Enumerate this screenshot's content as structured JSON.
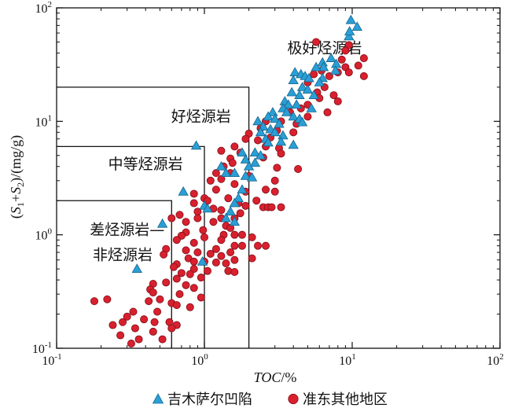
{
  "chart_data": {
    "type": "scatter",
    "x_scale": "log",
    "y_scale": "log",
    "xlim": [
      0.1,
      100
    ],
    "ylim": [
      0.1,
      100
    ],
    "x_ticks": [
      {
        "base": "10",
        "exp": "-1"
      },
      {
        "base": "10",
        "exp": "0"
      },
      {
        "base": "10",
        "exp": "1"
      },
      {
        "base": "10",
        "exp": "2"
      }
    ],
    "y_ticks": [
      {
        "base": "10",
        "exp": "-1"
      },
      {
        "base": "10",
        "exp": "0"
      },
      {
        "base": "10",
        "exp": "1"
      },
      {
        "base": "10",
        "exp": "2"
      }
    ],
    "xlabel": {
      "italic": "TOC",
      "rest": "/%"
    },
    "ylabel": {
      "open": "(",
      "s1": "S",
      "sub1": "1",
      "plus": "+",
      "s2": "S",
      "sub2": "2",
      "close": ")/(mg/g)"
    },
    "regions": [
      {
        "label": "极好烃源岩",
        "at": [
          6.5,
          40
        ]
      },
      {
        "label": "好烃源岩",
        "at": [
          0.95,
          10
        ]
      },
      {
        "label": "中等烃源岩",
        "at": [
          0.4,
          3.8
        ]
      },
      {
        "label": "差烃源岩—",
        "at": [
          0.3,
          1.0
        ]
      },
      {
        "label": "非烃源岩",
        "at": [
          0.28,
          0.6
        ]
      }
    ],
    "boundaries": [
      {
        "toc": 2,
        "s1s2": 20
      },
      {
        "toc": 1,
        "s1s2": 6
      },
      {
        "toc": 0.6,
        "s1s2": 2
      }
    ],
    "legend_position": "bottom",
    "series": [
      {
        "name": "吉木萨尔凹陷",
        "marker": "triangle",
        "color": "#2a9fd6",
        "points": [
          [
            9.8,
            78
          ],
          [
            10.8,
            68
          ],
          [
            9.5,
            56
          ],
          [
            9.6,
            62
          ],
          [
            7.2,
            36
          ],
          [
            6.3,
            33
          ],
          [
            7.8,
            32
          ],
          [
            6.4,
            30
          ],
          [
            5.7,
            30
          ],
          [
            4.1,
            27
          ],
          [
            4.5,
            26
          ],
          [
            4.8,
            25
          ],
          [
            5.1,
            24
          ],
          [
            6.3,
            24
          ],
          [
            7.7,
            28
          ],
          [
            4.0,
            23
          ],
          [
            4.6,
            20
          ],
          [
            5.0,
            19
          ],
          [
            3.9,
            18
          ],
          [
            4.4,
            17
          ],
          [
            5.5,
            17
          ],
          [
            6.0,
            22
          ],
          [
            3.5,
            15
          ],
          [
            3.7,
            14
          ],
          [
            4.2,
            14
          ],
          [
            5.3,
            13
          ],
          [
            3.4,
            13
          ],
          [
            2.9,
            12
          ],
          [
            3.6,
            12
          ],
          [
            4.0,
            11
          ],
          [
            2.7,
            11
          ],
          [
            3.0,
            10.5
          ],
          [
            4.4,
            10.5
          ],
          [
            2.3,
            10
          ],
          [
            3.2,
            9.5
          ],
          [
            4.6,
            9.8
          ],
          [
            2.5,
            9.0
          ],
          [
            2.8,
            8.5
          ],
          [
            3.0,
            8.0
          ],
          [
            3.4,
            7.5
          ],
          [
            2.4,
            8.0
          ],
          [
            2.6,
            7.0
          ],
          [
            3.3,
            6.6
          ],
          [
            2.7,
            6.5
          ],
          [
            4.0,
            6.2
          ],
          [
            0.88,
            6.1
          ],
          [
            2.2,
            5.3
          ],
          [
            1.8,
            5.3
          ],
          [
            2.4,
            5.0
          ],
          [
            1.9,
            4.6
          ],
          [
            2.2,
            4.3
          ],
          [
            2.0,
            4.0
          ],
          [
            1.3,
            4.0
          ],
          [
            1.4,
            3.5
          ],
          [
            1.6,
            3.5
          ],
          [
            1.9,
            3.3
          ],
          [
            2.1,
            3.2
          ],
          [
            1.8,
            2.5
          ],
          [
            0.72,
            2.4
          ],
          [
            1.7,
            2.1
          ],
          [
            1.6,
            1.9
          ],
          [
            1.0,
            1.8
          ],
          [
            1.05,
            1.7
          ],
          [
            1.5,
            1.6
          ],
          [
            1.4,
            1.4
          ],
          [
            1.6,
            1.3
          ],
          [
            0.52,
            1.25
          ],
          [
            0.97,
            0.58
          ],
          [
            0.35,
            0.5
          ]
        ]
      },
      {
        "name": "准东其他地区",
        "marker": "circle",
        "color": "#d9202e",
        "points": [
          [
            5.7,
            50
          ],
          [
            9.5,
            47
          ],
          [
            9.0,
            42
          ],
          [
            12.0,
            36
          ],
          [
            8.5,
            35
          ],
          [
            11.0,
            31
          ],
          [
            9.0,
            30
          ],
          [
            9.5,
            27
          ],
          [
            8.0,
            27
          ],
          [
            12.0,
            25
          ],
          [
            7.0,
            25
          ],
          [
            6.2,
            28
          ],
          [
            5.5,
            26
          ],
          [
            5.0,
            22
          ],
          [
            6.5,
            20
          ],
          [
            5.8,
            18
          ],
          [
            7.5,
            17
          ],
          [
            6.0,
            16
          ],
          [
            8.0,
            15
          ],
          [
            5.0,
            14
          ],
          [
            4.5,
            13
          ],
          [
            6.8,
            12
          ],
          [
            3.8,
            12
          ],
          [
            5.0,
            11
          ],
          [
            3.3,
            10
          ],
          [
            2.6,
            10
          ],
          [
            4.2,
            9.5
          ],
          [
            2.4,
            8.7
          ],
          [
            3.1,
            8.3
          ],
          [
            4.0,
            8.0
          ],
          [
            2.0,
            7.8
          ],
          [
            2.8,
            7.2
          ],
          [
            1.9,
            7.0
          ],
          [
            2.3,
            6.8
          ],
          [
            2.6,
            6.0
          ],
          [
            3.2,
            5.8
          ],
          [
            1.6,
            6.0
          ],
          [
            1.3,
            5.5
          ],
          [
            1.75,
            5.3
          ],
          [
            3.3,
            5.2
          ],
          [
            2.5,
            4.8
          ],
          [
            1.5,
            4.7
          ],
          [
            1.55,
            4.3
          ],
          [
            1.35,
            4.0
          ],
          [
            4.3,
            3.8
          ],
          [
            3.1,
            3.9
          ],
          [
            1.2,
            3.5
          ],
          [
            1.5,
            3.5
          ],
          [
            1.1,
            3.0
          ],
          [
            3.0,
            3.0
          ],
          [
            2.0,
            3.3
          ],
          [
            1.3,
            3.1
          ],
          [
            1.6,
            2.8
          ],
          [
            2.6,
            2.5
          ],
          [
            1.2,
            2.5
          ],
          [
            1.9,
            2.4
          ],
          [
            3.0,
            2.4
          ],
          [
            0.85,
            2.3
          ],
          [
            1.0,
            2.1
          ],
          [
            1.45,
            2.1
          ],
          [
            1.05,
            2.0
          ],
          [
            2.25,
            2.0
          ],
          [
            1.7,
            1.9
          ],
          [
            1.9,
            1.8
          ],
          [
            0.85,
            1.9
          ],
          [
            2.5,
            1.75
          ],
          [
            2.7,
            1.75
          ],
          [
            2.85,
            1.75
          ],
          [
            3.3,
            1.75
          ],
          [
            1.15,
            1.7
          ],
          [
            1.3,
            1.65
          ],
          [
            0.9,
            1.6
          ],
          [
            0.68,
            1.5
          ],
          [
            1.75,
            1.55
          ],
          [
            1.3,
            1.4
          ],
          [
            1.6,
            1.4
          ],
          [
            0.6,
            1.4
          ],
          [
            0.9,
            1.4
          ],
          [
            1.15,
            1.3
          ],
          [
            0.75,
            1.3
          ],
          [
            1.4,
            1.2
          ],
          [
            1.5,
            1.15
          ],
          [
            0.98,
            1.1
          ],
          [
            0.75,
            1.05
          ],
          [
            1.35,
            1.0
          ],
          [
            1.6,
            1.0
          ],
          [
            1.8,
            1.0
          ],
          [
            0.7,
            0.98
          ],
          [
            1.0,
            0.95
          ],
          [
            1.3,
            0.9
          ],
          [
            2.1,
            0.95
          ],
          [
            0.85,
            0.85
          ],
          [
            0.65,
            0.9
          ],
          [
            1.6,
            0.8
          ],
          [
            1.8,
            0.8
          ],
          [
            2.3,
            0.8
          ],
          [
            2.6,
            0.8
          ],
          [
            0.55,
            0.75
          ],
          [
            0.75,
            0.73
          ],
          [
            1.2,
            0.75
          ],
          [
            1.5,
            0.7
          ],
          [
            0.9,
            0.7
          ],
          [
            1.1,
            0.68
          ],
          [
            0.53,
            0.67
          ],
          [
            1.3,
            0.65
          ],
          [
            0.78,
            0.62
          ],
          [
            2.1,
            0.62
          ],
          [
            1.6,
            0.6
          ],
          [
            0.85,
            0.58
          ],
          [
            1.0,
            0.58
          ],
          [
            1.2,
            0.57
          ],
          [
            1.4,
            0.56
          ],
          [
            0.65,
            0.55
          ],
          [
            0.62,
            0.52
          ],
          [
            0.85,
            0.5
          ],
          [
            1.05,
            0.48
          ],
          [
            1.45,
            0.48
          ],
          [
            1.6,
            0.47
          ],
          [
            0.7,
            0.46
          ],
          [
            0.8,
            0.45
          ],
          [
            0.95,
            0.42
          ],
          [
            0.65,
            0.41
          ],
          [
            0.55,
            0.38
          ],
          [
            0.45,
            0.37
          ],
          [
            0.75,
            0.36
          ],
          [
            0.85,
            0.34
          ],
          [
            0.43,
            0.33
          ],
          [
            0.45,
            0.31
          ],
          [
            0.68,
            0.3
          ],
          [
            0.95,
            0.28
          ],
          [
            0.5,
            0.27
          ],
          [
            0.42,
            0.26
          ],
          [
            0.6,
            0.25
          ],
          [
            0.65,
            0.24
          ],
          [
            0.8,
            0.23
          ],
          [
            0.18,
            0.26
          ],
          [
            0.22,
            0.27
          ],
          [
            0.48,
            0.21
          ],
          [
            0.46,
            0.17
          ],
          [
            0.58,
            0.17
          ],
          [
            0.65,
            0.16
          ],
          [
            0.33,
            0.21
          ],
          [
            0.3,
            0.19
          ],
          [
            0.39,
            0.18
          ],
          [
            0.28,
            0.17
          ],
          [
            0.24,
            0.16
          ],
          [
            0.34,
            0.15
          ],
          [
            0.36,
            0.12
          ],
          [
            0.45,
            0.14
          ],
          [
            0.52,
            0.12
          ],
          [
            0.6,
            0.15
          ],
          [
            0.27,
            0.13
          ],
          [
            0.32,
            0.11
          ]
        ]
      }
    ]
  }
}
